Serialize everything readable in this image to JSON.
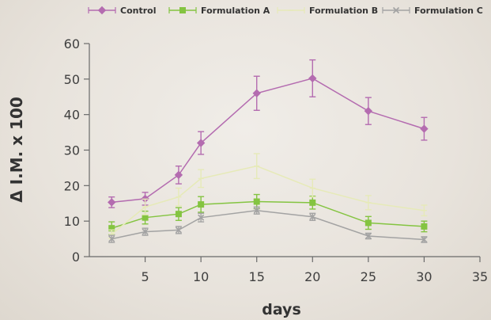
{
  "chart_data": {
    "type": "line",
    "title": "",
    "xlabel": "days",
    "ylabel": "Δ I.M. x 100",
    "xlim": [
      0,
      35
    ],
    "ylim": [
      0,
      60
    ],
    "x_ticks": [
      5,
      10,
      15,
      20,
      25,
      30,
      35
    ],
    "y_ticks": [
      0,
      10,
      20,
      30,
      40,
      50,
      60
    ],
    "grid": false,
    "legend_position": "top",
    "x": [
      2,
      5,
      8,
      10,
      15,
      20,
      25,
      30
    ],
    "series": [
      {
        "name": "Control",
        "color": "#b46cb0",
        "marker": "diamond",
        "values": [
          15.3,
          16.3,
          23,
          32,
          46,
          50.2,
          41,
          36
        ],
        "errors": [
          1.5,
          1.8,
          2.5,
          3.2,
          4.8,
          5.2,
          3.8,
          3.2
        ]
      },
      {
        "name": "Formulation A",
        "color": "#84c441",
        "marker": "square",
        "values": [
          8,
          11,
          12,
          14.7,
          15.5,
          15.2,
          9.5,
          8.5
        ],
        "errors": [
          1.8,
          1.8,
          1.8,
          2.2,
          2.0,
          1.8,
          1.8,
          1.5
        ]
      },
      {
        "name": "Formulation B",
        "color": "#e6eab8",
        "marker": "line",
        "values": [
          6.3,
          14,
          16.8,
          22,
          25.5,
          19.3,
          15.2,
          13
        ],
        "errors": [
          1.2,
          2.2,
          2.5,
          2.5,
          3.5,
          2.5,
          2.0,
          1.5
        ]
      },
      {
        "name": "Formulation C",
        "color": "#a3a3a3",
        "marker": "x",
        "values": [
          5,
          7,
          7.5,
          11,
          13,
          11.2,
          5.8,
          4.8
        ],
        "errors": [
          1.0,
          1.0,
          1.0,
          1.2,
          1.0,
          1.0,
          0.8,
          0.8
        ]
      }
    ]
  }
}
